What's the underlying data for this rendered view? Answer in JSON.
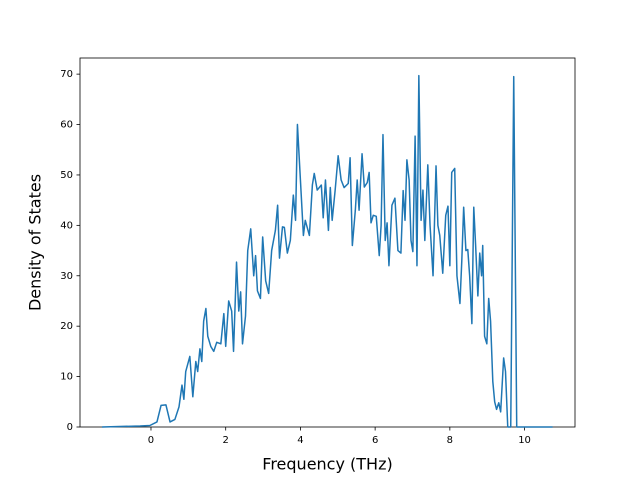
{
  "chart_data": {
    "type": "line",
    "xlabel": "Frequency (THz)",
    "ylabel": "Density of States",
    "color": "#1f77b4",
    "x": [
      -1.31,
      -0.29,
      -0.03,
      0.16,
      0.27,
      0.4,
      0.51,
      0.64,
      0.75,
      0.83,
      0.88,
      0.93,
      1.04,
      1.12,
      1.2,
      1.25,
      1.31,
      1.36,
      1.41,
      1.47,
      1.52,
      1.6,
      1.68,
      1.76,
      1.87,
      1.95,
      2.0,
      2.08,
      2.16,
      2.21,
      2.29,
      2.35,
      2.4,
      2.45,
      2.53,
      2.59,
      2.67,
      2.75,
      2.8,
      2.85,
      2.93,
      2.99,
      3.07,
      3.15,
      3.23,
      3.33,
      3.39,
      3.44,
      3.52,
      3.57,
      3.65,
      3.73,
      3.81,
      3.87,
      3.92,
      4.0,
      4.08,
      4.13,
      4.24,
      4.32,
      4.37,
      4.45,
      4.56,
      4.61,
      4.67,
      4.75,
      4.8,
      4.85,
      4.93,
      5.01,
      5.09,
      5.17,
      5.28,
      5.33,
      5.39,
      5.47,
      5.52,
      5.57,
      5.65,
      5.71,
      5.79,
      5.84,
      5.89,
      5.95,
      6.03,
      6.11,
      6.16,
      6.21,
      6.27,
      6.32,
      6.37,
      6.45,
      6.53,
      6.61,
      6.69,
      6.75,
      6.8,
      6.85,
      6.91,
      6.96,
      7.01,
      7.07,
      7.12,
      7.17,
      7.23,
      7.28,
      7.33,
      7.41,
      7.47,
      7.55,
      7.63,
      7.68,
      7.73,
      7.81,
      7.89,
      7.95,
      8.0,
      8.05,
      8.13,
      8.19,
      8.27,
      8.32,
      8.37,
      8.43,
      8.48,
      8.53,
      8.59,
      8.64,
      8.69,
      8.75,
      8.8,
      8.85,
      8.88,
      8.93,
      8.99,
      9.04,
      9.09,
      9.15,
      9.2,
      9.25,
      9.31,
      9.36,
      9.44,
      9.49,
      9.55,
      9.63,
      9.71,
      9.79,
      10.75
    ],
    "y": [
      0,
      0.2,
      0.3,
      1,
      4.3,
      4.4,
      1,
      1.5,
      4,
      8.3,
      5.5,
      11,
      14,
      6,
      13,
      11,
      15.5,
      13,
      21,
      23.5,
      18,
      16,
      15,
      16.8,
      16.5,
      22.5,
      16,
      25,
      23,
      15,
      32.7,
      23,
      26.8,
      16.5,
      22,
      35,
      39.3,
      30,
      34,
      27,
      25.5,
      37.7,
      29,
      26.5,
      35,
      39,
      44,
      33.5,
      39.7,
      39.6,
      34.5,
      37,
      46,
      41,
      60,
      49,
      38,
      41,
      38,
      48,
      50.3,
      47,
      48,
      41.5,
      49,
      39,
      47.5,
      41,
      47,
      53.8,
      49,
      47.5,
      48.3,
      53.4,
      36,
      43,
      49,
      43,
      54.2,
      47.6,
      48.5,
      50.5,
      40.5,
      42,
      41.8,
      34,
      40,
      58,
      37,
      40.5,
      32,
      44,
      45.4,
      35,
      34.5,
      46.9,
      41,
      53,
      49,
      37,
      34.8,
      57.7,
      32,
      69.7,
      41,
      47,
      37,
      52,
      40,
      30,
      51.8,
      40,
      38,
      30.5,
      42,
      43.8,
      32,
      50.5,
      51.3,
      30,
      24.5,
      33,
      43.6,
      35,
      35.2,
      30,
      20.5,
      43.6,
      36,
      26,
      34.5,
      30,
      36,
      18,
      16.5,
      25.5,
      21,
      9,
      5,
      3.5,
      4.8,
      3,
      13.7,
      11,
      0,
      0,
      69.5,
      0,
      0
    ],
    "xlim": [
      -1.9,
      11.35
    ],
    "ylim": [
      0,
      73.2
    ],
    "xticks": [
      0,
      2,
      4,
      6,
      8,
      10
    ],
    "yticks": [
      0,
      10,
      20,
      30,
      40,
      50,
      60,
      70
    ]
  }
}
